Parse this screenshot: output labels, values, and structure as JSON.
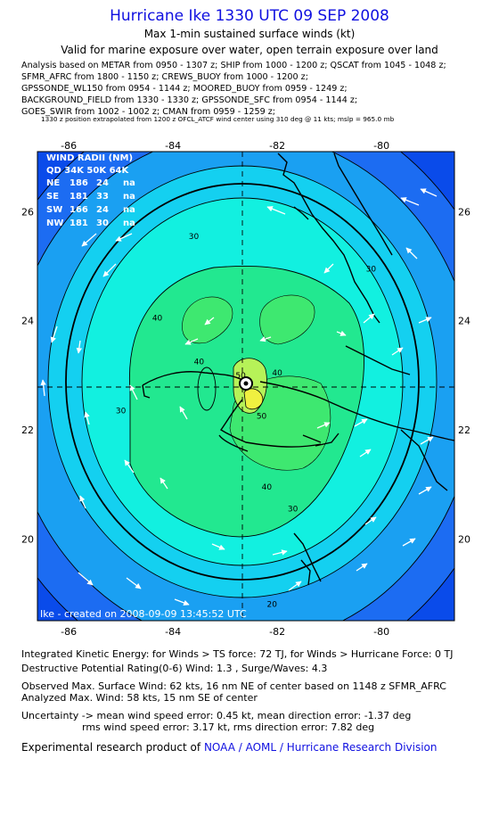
{
  "header": {
    "title": "Hurricane Ike 1330 UTC 09 SEP 2008",
    "subtitle": "Max 1-min sustained surface winds (kt)",
    "valid": "Valid for marine exposure over water, open terrain exposure over land",
    "analysis_lines": [
      "Analysis based on  METAR from 0950 - 1307 z;  SHIP from 1000 - 1200 z;  QSCAT from 1045 - 1048 z;",
      "SFMR_AFRC from 1800 - 1150 z;  CREWS_BUOY from 1000 - 1200 z;",
      "GPSSONDE_WL150 from 0954 - 1144 z;  MOORED_BUOY from 0959 - 1249 z;",
      "BACKGROUND_FIELD from 1330 - 1330 z;  GPSSONDE_SFC from 0954 - 1144 z;",
      "GOES_SWIR from 1002 - 1002 z;  CMAN from 0959 - 1259 z;"
    ],
    "extrapolation_note": "1330 z position extrapolated from 1200 z OFCL_ATCF wind center using 310 deg @ 11 kts; mslp = 965.0 mb"
  },
  "map": {
    "lon_ticks": [
      "-86",
      "-84",
      "-82",
      "-80"
    ],
    "lat_ticks": [
      "26",
      "24",
      "22",
      "20"
    ],
    "lon_range": [
      -86.6,
      -78.6
    ],
    "lat_range": [
      18.5,
      27.1
    ],
    "center": {
      "lon": -82.6,
      "lat": 22.6
    },
    "wind_radii": {
      "title": "WIND RADII (NM)",
      "header": "QD  34K  50K  64K",
      "rows": [
        {
          "quad": "NE",
          "r34": "186",
          "r50": "24",
          "r64": "na"
        },
        {
          "quad": "SE",
          "r34": "181",
          "r50": "33",
          "r64": "na"
        },
        {
          "quad": "SW",
          "r34": "166",
          "r50": "24",
          "r64": "na"
        },
        {
          "quad": "NW",
          "r34": "181",
          "r50": "30",
          "r64": "na"
        }
      ]
    },
    "contour_labels": [
      {
        "text": "30",
        "lon": -83.6,
        "lat": 25.5
      },
      {
        "text": "30",
        "lon": -80.2,
        "lat": 24.9
      },
      {
        "text": "30",
        "lon": -85.0,
        "lat": 22.3
      },
      {
        "text": "30",
        "lon": -81.7,
        "lat": 20.5
      },
      {
        "text": "40",
        "lon": -84.3,
        "lat": 24.0
      },
      {
        "text": "40",
        "lon": -83.5,
        "lat": 23.2
      },
      {
        "text": "40",
        "lon": -82.0,
        "lat": 23.0
      },
      {
        "text": "40",
        "lon": -82.2,
        "lat": 20.9
      },
      {
        "text": "50",
        "lon": -82.7,
        "lat": 22.95
      },
      {
        "text": "50",
        "lon": -82.3,
        "lat": 22.2
      },
      {
        "text": "20",
        "lon": -82.1,
        "lat": 18.75
      }
    ],
    "watermark": "Ike - created on 2008-09-09 13:45:52 UTC",
    "colors": {
      "land": "#0a4bea",
      "shade10": "#1c6cf2",
      "shade20": "#1aa0f2",
      "shade30": "#14d0f0",
      "shade35": "#12f0e0",
      "shade40": "#22e890",
      "shade45": "#3ee870",
      "shade50": "#b6f258",
      "shade55": "#f0f040",
      "contour": "#000000",
      "arrow": "#ffffff"
    }
  },
  "footer": {
    "ike": "Integrated Kinetic Energy:  for Winds > TS force: 72 TJ,  for Winds > Hurricane Force: 0 TJ",
    "dpr": "Destructive Potential Rating(0-6)   Wind: 1.3 , Surge/Waves: 4.3",
    "observed": "Observed Max. Surface Wind: 62 kts, 16 nm NE of center based on 1148 z SFMR_AFRC",
    "analyzed": "Analyzed Max. Wind: 58 kts, 15 nm SE of center",
    "uncert1": "Uncertainty -> mean wind speed error: 0.45 kt,   mean direction error:  -1.37 deg",
    "uncert2": "rms wind speed error: 3.17 kt,   rms direction error: 7.82 deg",
    "product_prefix": "Experimental research product of",
    "product_link": "NOAA / AOML / Hurricane Research Division"
  }
}
